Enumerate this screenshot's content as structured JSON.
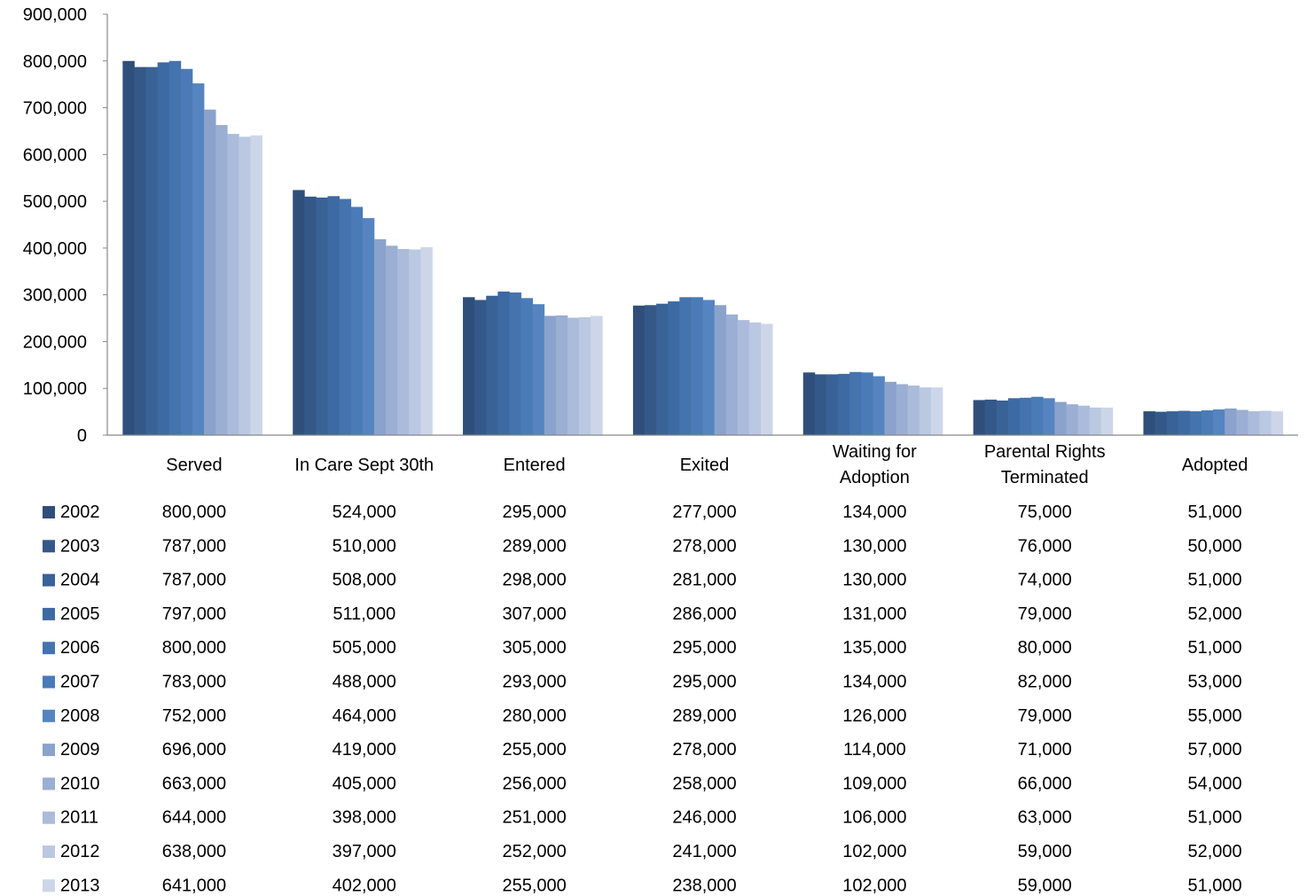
{
  "chart_data": {
    "type": "bar",
    "categories": [
      [
        "Served"
      ],
      [
        "In Care Sept 30th"
      ],
      [
        "Entered"
      ],
      [
        "Exited"
      ],
      [
        "Waiting for",
        "Adoption"
      ],
      [
        "Parental Rights",
        "Terminated"
      ],
      [
        "Adopted"
      ]
    ],
    "ylim": [
      0,
      900000
    ],
    "yticks": [
      0,
      100000,
      200000,
      300000,
      400000,
      500000,
      600000,
      700000,
      800000,
      900000
    ],
    "ytick_labels": [
      "0",
      "100,000",
      "200,000",
      "300,000",
      "400,000",
      "500,000",
      "600,000",
      "700,000",
      "800,000",
      "900,000"
    ],
    "grid": false,
    "legend": "data-table-left",
    "series": [
      {
        "name": "2002",
        "color": "#2f4f7a",
        "values": [
          800000,
          524000,
          295000,
          277000,
          134000,
          75000,
          51000
        ],
        "labels": [
          "800,000",
          "524,000",
          "295,000",
          "277,000",
          "134,000",
          "75,000",
          "51,000"
        ]
      },
      {
        "name": "2003",
        "color": "#345988",
        "values": [
          787000,
          510000,
          289000,
          278000,
          130000,
          76000,
          50000
        ],
        "labels": [
          "787,000",
          "510,000",
          "289,000",
          "278,000",
          "130,000",
          "76,000",
          "50,000"
        ]
      },
      {
        "name": "2004",
        "color": "#396296",
        "values": [
          787000,
          508000,
          298000,
          281000,
          130000,
          74000,
          51000
        ],
        "labels": [
          "787,000",
          "508,000",
          "298,000",
          "281,000",
          "130,000",
          "74,000",
          "51,000"
        ]
      },
      {
        "name": "2005",
        "color": "#3e6aa3",
        "values": [
          797000,
          511000,
          307000,
          286000,
          131000,
          79000,
          52000
        ],
        "labels": [
          "797,000",
          "511,000",
          "307,000",
          "286,000",
          "131,000",
          "79,000",
          "52,000"
        ]
      },
      {
        "name": "2006",
        "color": "#4473ae",
        "values": [
          800000,
          505000,
          305000,
          295000,
          135000,
          80000,
          51000
        ],
        "labels": [
          "800,000",
          "505,000",
          "305,000",
          "295,000",
          "135,000",
          "80,000",
          "51,000"
        ]
      },
      {
        "name": "2007",
        "color": "#4a7bb7",
        "values": [
          783000,
          488000,
          293000,
          295000,
          134000,
          82000,
          53000
        ],
        "labels": [
          "783,000",
          "488,000",
          "293,000",
          "295,000",
          "134,000",
          "82,000",
          "53,000"
        ]
      },
      {
        "name": "2008",
        "color": "#5584c0",
        "values": [
          752000,
          464000,
          280000,
          289000,
          126000,
          79000,
          55000
        ],
        "labels": [
          "752,000",
          "464,000",
          "280,000",
          "289,000",
          "126,000",
          "79,000",
          "55,000"
        ]
      },
      {
        "name": "2009",
        "color": "#8aa2cc",
        "values": [
          696000,
          419000,
          255000,
          278000,
          114000,
          71000,
          57000
        ],
        "labels": [
          "696,000",
          "419,000",
          "255,000",
          "278,000",
          "114,000",
          "71,000",
          "57,000"
        ]
      },
      {
        "name": "2010",
        "color": "#9baed3",
        "values": [
          663000,
          405000,
          256000,
          258000,
          109000,
          66000,
          54000
        ],
        "labels": [
          "663,000",
          "405,000",
          "256,000",
          "258,000",
          "109,000",
          "66,000",
          "54,000"
        ]
      },
      {
        "name": "2011",
        "color": "#abbbdb",
        "values": [
          644000,
          398000,
          251000,
          246000,
          106000,
          63000,
          51000
        ],
        "labels": [
          "644,000",
          "398,000",
          "251,000",
          "246,000",
          "106,000",
          "63,000",
          "51,000"
        ]
      },
      {
        "name": "2012",
        "color": "#bbc8e2",
        "values": [
          638000,
          397000,
          252000,
          241000,
          102000,
          59000,
          52000
        ],
        "labels": [
          "638,000",
          "397,000",
          "252,000",
          "241,000",
          "102,000",
          "59,000",
          "52,000"
        ]
      },
      {
        "name": "2013",
        "color": "#cdd6e9",
        "values": [
          641000,
          402000,
          255000,
          238000,
          102000,
          59000,
          51000
        ],
        "labels": [
          "641,000",
          "402,000",
          "255,000",
          "238,000",
          "102,000",
          "59,000",
          "51,000"
        ]
      }
    ]
  }
}
